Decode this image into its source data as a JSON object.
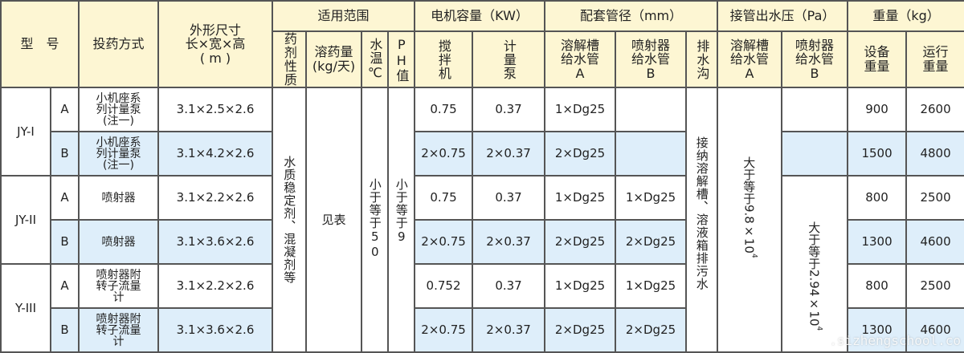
{
  "header": {
    "model": "型　号",
    "dosing_method": "投药方式",
    "dimensions": [
      "外形尺寸",
      "长×宽×高",
      "( m )"
    ],
    "scope": "适用范围",
    "scope_cols": {
      "agent": "药剂性质",
      "dose": [
        "溶药量",
        "(kg/天)"
      ],
      "water_temp": "水温℃",
      "ph": "PH值"
    },
    "motor": "电机容量（KW）",
    "motor_cols": {
      "mixer": "搅拌机",
      "pump": "计量泵"
    },
    "pipe": "配套管径（mm）",
    "pipe_cols": {
      "a": [
        "溶解槽",
        "给水管",
        "A"
      ],
      "b": [
        "喷射器",
        "给水管",
        "B"
      ],
      "drain": "排水沟"
    },
    "pressure": "接管出水压（Pa）",
    "pressure_cols": {
      "a": [
        "溶解槽",
        "给水管",
        "A"
      ],
      "b": [
        "喷射器",
        "给水管",
        "B"
      ]
    },
    "weight": "重量（kg）",
    "weight_cols": {
      "equip": [
        "设备",
        "重量"
      ],
      "run": [
        "运行",
        "重量"
      ]
    }
  },
  "merged": {
    "agent": "水质稳定剂、混凝剂等",
    "dose": "见表",
    "water_temp": "小于等于50",
    "ph": "小于等于9",
    "drain": "接纳溶解槽、溶液箱排污水",
    "pressure_a": "大于等于9.8×10",
    "pressure_a_exp": "4",
    "pressure_b": "大于等于2.94×10",
    "pressure_b_exp": "4"
  },
  "groups": [
    "JY-I",
    "JY-II",
    "Y-III"
  ],
  "rows": [
    {
      "sub": "A",
      "method": [
        "小机座系",
        "列计量泵",
        "(注一)"
      ],
      "dim": "3.1×2.5×2.6",
      "mixer": "0.75",
      "pump": "0.37",
      "pipe_a": "1×Dg25",
      "pipe_b": "",
      "press_b": "",
      "equip": "900",
      "run": "2600"
    },
    {
      "sub": "B",
      "method": [
        "小机座系",
        "列计量泵",
        "(注一)"
      ],
      "dim": "3.1×4.2×2.6",
      "mixer": "2×0.75",
      "pump": "2×0.37",
      "pipe_a": "2×Dg25",
      "pipe_b": "",
      "press_b": "",
      "equip": "1500",
      "run": "4800"
    },
    {
      "sub": "A",
      "method": [
        "喷射器"
      ],
      "dim": "3.1×2.2×2.6",
      "mixer": "0.75",
      "pump": "0.37",
      "pipe_a": "1×Dg25",
      "pipe_b": "1×Dg25",
      "equip": "800",
      "run": "2500"
    },
    {
      "sub": "B",
      "method": [
        "喷射器"
      ],
      "dim": "3.1×3.6×2.6",
      "mixer": "2×0.75",
      "pump": "2×0.37",
      "pipe_a": "2×Dg25",
      "pipe_b": "2×Dg25",
      "equip": "1300",
      "run": "4600"
    },
    {
      "sub": "A",
      "method": [
        "喷射器附",
        "转子流量",
        "计"
      ],
      "dim": "3.1×2.2×2.6",
      "mixer": "0.752",
      "pump": "0.37",
      "pipe_a": "1×Dg25",
      "pipe_b": "1×Dg25",
      "equip": "800",
      "run": "2500"
    },
    {
      "sub": "B",
      "method": [
        "喷射器附",
        "转子流量",
        "计"
      ],
      "dim": "3.1×3.6×2.6",
      "mixer": "2×0.75",
      "pump": "2×0.37",
      "pipe_a": "2×Dg25",
      "pipe_b": "2×Dg25",
      "equip": "1300",
      "run": "4600"
    }
  ],
  "watermark": ".sizhengschool.co",
  "colors": {
    "header_bg": "#fdf6d3",
    "alt_row_bg": "#deeefa",
    "border": "#555555"
  }
}
